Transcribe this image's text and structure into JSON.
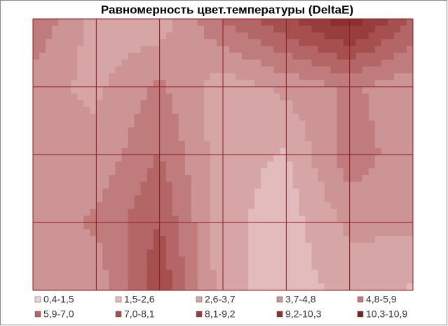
{
  "chart_data": {
    "type": "contour",
    "title": "Равномерность цвет.температуры (DeltaE)",
    "z": [
      [
        6,
        3,
        3,
        6,
        8,
        10,
        7
      ],
      [
        4,
        3.5,
        5,
        3,
        4,
        5,
        4
      ],
      [
        4,
        4,
        6,
        3,
        2.5,
        5.5,
        4
      ],
      [
        4,
        5,
        7,
        3,
        2,
        4,
        4
      ],
      [
        4,
        4,
        8,
        3,
        2,
        3,
        2.5
      ]
    ],
    "grid": true,
    "levels": [
      {
        "name": "0,4-1,5",
        "range": [
          0.4,
          1.5
        ],
        "color": "#ecd2d2"
      },
      {
        "name": "1,5-2,6",
        "range": [
          1.5,
          2.6
        ],
        "color": "#e2bcbc"
      },
      {
        "name": "2,6-3,7",
        "range": [
          2.6,
          3.7
        ],
        "color": "#d6a6a6"
      },
      {
        "name": "3,7-4,8",
        "range": [
          3.7,
          4.8
        ],
        "color": "#cc9494"
      },
      {
        "name": "4,8-5,9",
        "range": [
          4.8,
          5.9
        ],
        "color": "#c07c7c"
      },
      {
        "name": "5,9-7,0",
        "range": [
          5.9,
          7.0
        ],
        "color": "#b46666"
      },
      {
        "name": "7,0-8,1",
        "range": [
          7.0,
          8.1
        ],
        "color": "#a64f4f"
      },
      {
        "name": "8,1-9,2",
        "range": [
          8.1,
          9.2
        ],
        "color": "#983d3d"
      },
      {
        "name": "9,2-10,3",
        "range": [
          9.2,
          10.3
        ],
        "color": "#8b2f2f"
      },
      {
        "name": "10,3-10,9",
        "range": [
          10.3,
          10.9
        ],
        "color": "#7a2222"
      }
    ]
  }
}
